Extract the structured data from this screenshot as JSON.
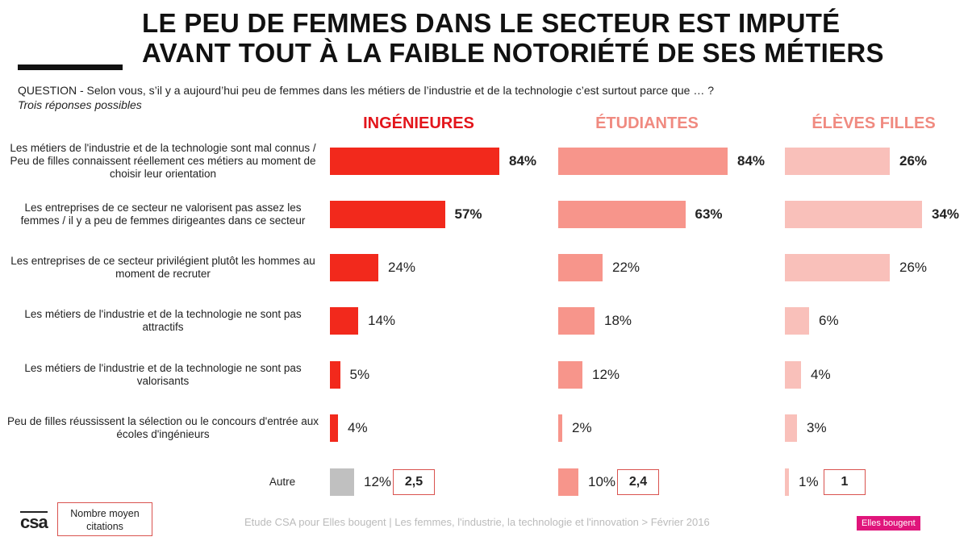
{
  "title_lines": [
    "LE PEU DE FEMMES DANS LE SECTEUR EST IMPUTÉ",
    "AVANT TOUT À LA FAIBLE NOTORIÉTÉ DE SES MÉTIERS"
  ],
  "question": "QUESTION - Selon vous, s’il y a aujourd’hui peu de femmes dans les métiers de l’industrie et de la technologie c’est surtout parce que … ?",
  "note": "Trois réponses possibles",
  "legend_box": "Nombre moyen citations",
  "logo": "csa",
  "footer": "Etude CSA pour Elles bougent | Les femmes, l'industrie, la technologie et l'innovation > Février 2016",
  "brand": "Elles bougent",
  "chart_data": {
    "type": "bar",
    "orientation": "horizontal",
    "categories": [
      "Les métiers de l'industrie et de la technologie sont mal connus / Peu de filles connaissent réellement ces métiers au moment de choisir leur orientation",
      "Les entreprises de ce secteur ne valorisent pas assez les femmes / il y a peu de femmes dirigeantes dans ce secteur",
      "Les entreprises de ce secteur privilégient plutôt les hommes au moment de recruter",
      "Les métiers de l'industrie et de la technologie ne sont pas attractifs",
      "Les métiers de l'industrie et de la technologie ne sont pas valorisants",
      "Peu de filles réussissent la sélection ou le concours d'entrée aux écoles d'ingénieurs",
      "Autre"
    ],
    "series": [
      {
        "name": "INGÉNIEURES",
        "values": [
          84,
          57,
          24,
          14,
          5,
          4,
          12
        ],
        "color": "#f2291c",
        "head_color": "#e3151b",
        "mean_citations": "2,5"
      },
      {
        "name": "ÉTUDIANTES",
        "values": [
          84,
          63,
          22,
          18,
          12,
          2,
          10
        ],
        "color": "#f7958b",
        "head_color": "#f08a80",
        "mean_citations": "2,4"
      },
      {
        "name": "ÉLÈVES FILLES",
        "values": [
          26,
          34,
          26,
          6,
          4,
          3,
          1
        ],
        "color": "#f9c0ba",
        "head_color": "#f08a80",
        "mean_citations": "1"
      }
    ],
    "other_color": "#c0c0c0",
    "bold_rows": 2,
    "value_suffix": "%"
  }
}
